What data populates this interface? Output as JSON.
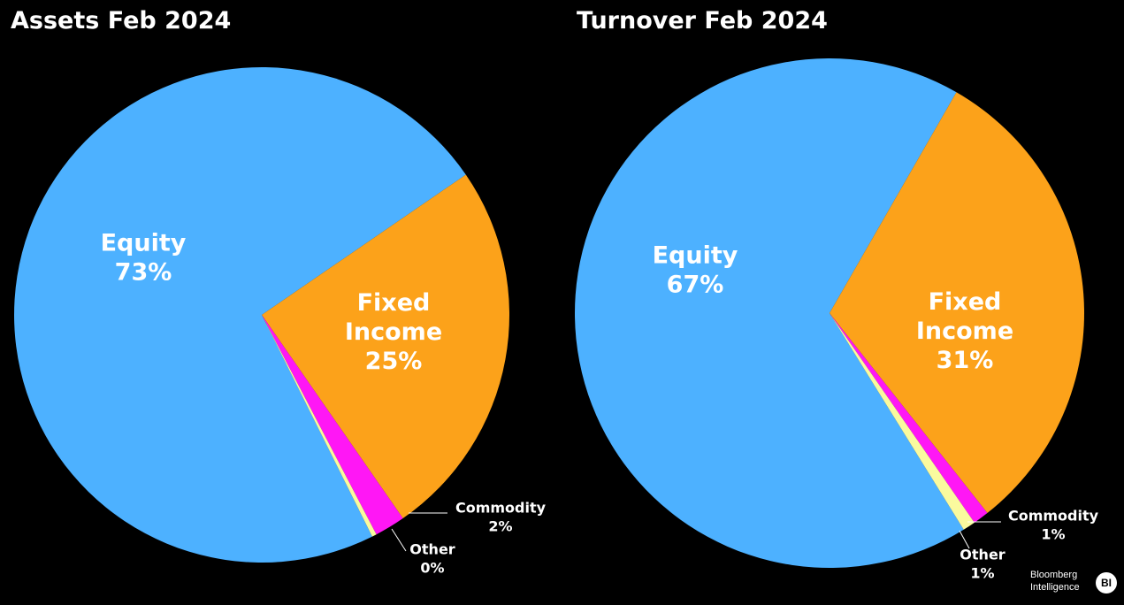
{
  "chart_data": [
    {
      "type": "pie",
      "title": "Assets Feb 2024",
      "slices": [
        {
          "name": "Equity",
          "value": 73,
          "label": "73%",
          "color": "#4DB1FF"
        },
        {
          "name": "Fixed Income",
          "value": 25,
          "label": "25%",
          "color": "#FCA21A"
        },
        {
          "name": "Commodity",
          "value": 2,
          "label": "2%",
          "color": "#FF17F5"
        },
        {
          "name": "Other",
          "value": 0.3,
          "label": "0%",
          "color": "#FAFA9E"
        }
      ]
    },
    {
      "type": "pie",
      "title": "Turnover Feb 2024",
      "slices": [
        {
          "name": "Equity",
          "value": 67,
          "label": "67%",
          "color": "#4DB1FF"
        },
        {
          "name": "Fixed Income",
          "value": 31,
          "label": "31%",
          "color": "#FCA21A"
        },
        {
          "name": "Commodity",
          "value": 1,
          "label": "1%",
          "color": "#FF17F5"
        },
        {
          "name": "Other",
          "value": 0.8,
          "label": "1%",
          "color": "#FAFA9E"
        }
      ]
    }
  ],
  "logo": {
    "line1": "Bloomberg",
    "line2": "Intelligence",
    "mark": "BI"
  }
}
